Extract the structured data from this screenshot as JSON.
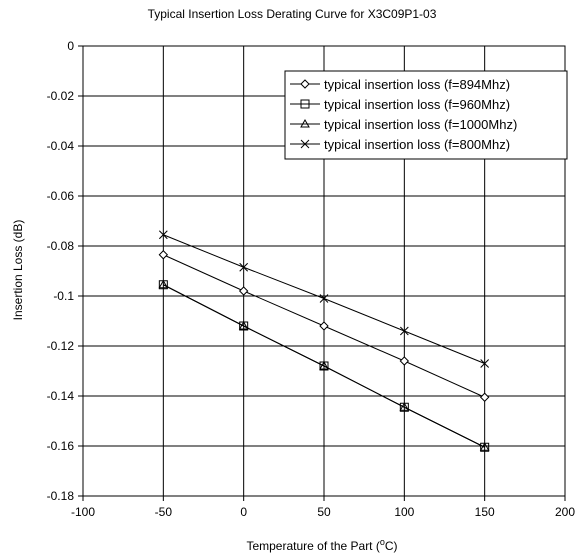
{
  "chart_data": {
    "type": "line",
    "title": "Typical Insertion Loss Derating Curve for X3C09P1-03",
    "xlabel_main": "Temperature of the Part (",
    "xlabel_sup": "o",
    "xlabel_tail": "C)",
    "ylabel": "Insertion Loss (dB)",
    "xlim": [
      -100,
      200
    ],
    "ylim": [
      -0.18,
      0
    ],
    "x_ticks": [
      -100,
      -50,
      0,
      50,
      100,
      150,
      200
    ],
    "y_ticks": [
      0,
      -0.02,
      -0.04,
      -0.06,
      -0.08,
      -0.1,
      -0.12,
      -0.14,
      -0.16,
      -0.18
    ],
    "x_tick_labels": [
      "-100",
      "-50",
      "0",
      "50",
      "100",
      "150",
      "200"
    ],
    "y_tick_labels": [
      "0",
      "-0.02",
      "-0.04",
      "-0.06",
      "-0.08",
      "-0.1",
      "-0.12",
      "-0.14",
      "-0.16",
      "-0.18"
    ],
    "grid": true,
    "legend_position": "top-right",
    "x": [
      -50,
      0,
      50,
      100,
      150
    ],
    "series": [
      {
        "name": "typical insertion loss (f=894Mhz)",
        "marker": "diamond",
        "values": [
          -0.0835,
          -0.098,
          -0.112,
          -0.126,
          -0.1405
        ]
      },
      {
        "name": "typical insertion loss (f=960Mhz)",
        "marker": "square",
        "values": [
          -0.0955,
          -0.112,
          -0.128,
          -0.1445,
          -0.1605
        ]
      },
      {
        "name": "typical insertion loss (f=1000Mhz)",
        "marker": "triangle",
        "values": [
          -0.0955,
          -0.112,
          -0.128,
          -0.1445,
          -0.1605
        ]
      },
      {
        "name": "typical insertion loss (f=800Mhz)",
        "marker": "x",
        "values": [
          -0.0755,
          -0.0885,
          -0.101,
          -0.114,
          -0.127
        ]
      }
    ]
  }
}
